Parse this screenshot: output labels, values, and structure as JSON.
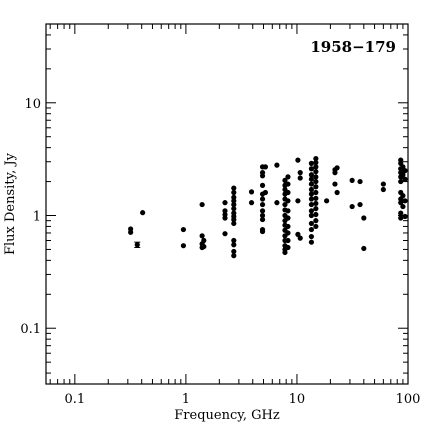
{
  "chart_data": {
    "type": "scatter",
    "title": "1958−179",
    "xlabel": "Frequency, GHz",
    "ylabel": "Flux Density, Jy",
    "xscale": "log",
    "yscale": "log",
    "xlim": [
      0.055,
      100
    ],
    "ylim": [
      0.032,
      50
    ],
    "grid": false,
    "x_tick_labels": [
      {
        "value": 0.1,
        "label": "0.1"
      },
      {
        "value": 1,
        "label": "1"
      },
      {
        "value": 10,
        "label": "10"
      },
      {
        "value": 100,
        "label": "100"
      }
    ],
    "y_tick_labels": [
      {
        "value": 0.1,
        "label": "0.1"
      },
      {
        "value": 1,
        "label": "1"
      },
      {
        "value": 10,
        "label": "10"
      }
    ],
    "points": [
      {
        "x": 0.318,
        "y": 0.76
      },
      {
        "x": 0.318,
        "y": 0.71
      },
      {
        "x": 0.365,
        "y": 0.55,
        "err": 0.03
      },
      {
        "x": 0.408,
        "y": 1.06
      },
      {
        "x": 0.95,
        "y": 0.75
      },
      {
        "x": 0.95,
        "y": 0.54
      },
      {
        "x": 1.4,
        "y": 1.25
      },
      {
        "x": 1.4,
        "y": 0.66
      },
      {
        "x": 1.4,
        "y": 0.56
      },
      {
        "x": 1.4,
        "y": 0.52
      },
      {
        "x": 1.45,
        "y": 0.53
      },
      {
        "x": 1.45,
        "y": 0.6
      },
      {
        "x": 2.25,
        "y": 1.3
      },
      {
        "x": 2.25,
        "y": 1.1
      },
      {
        "x": 2.25,
        "y": 1.02
      },
      {
        "x": 2.25,
        "y": 0.95
      },
      {
        "x": 2.25,
        "y": 0.69
      },
      {
        "x": 2.7,
        "y": 1.75
      },
      {
        "x": 2.7,
        "y": 1.6
      },
      {
        "x": 2.7,
        "y": 1.45
      },
      {
        "x": 2.7,
        "y": 1.35
      },
      {
        "x": 2.7,
        "y": 1.25
      },
      {
        "x": 2.7,
        "y": 1.15
      },
      {
        "x": 2.7,
        "y": 1.05
      },
      {
        "x": 2.7,
        "y": 0.98
      },
      {
        "x": 2.7,
        "y": 0.92
      },
      {
        "x": 2.7,
        "y": 0.85
      },
      {
        "x": 2.7,
        "y": 0.6
      },
      {
        "x": 2.7,
        "y": 0.55
      },
      {
        "x": 2.7,
        "y": 0.48
      },
      {
        "x": 2.7,
        "y": 0.44
      },
      {
        "x": 3.9,
        "y": 1.62
      },
      {
        "x": 3.9,
        "y": 1.3
      },
      {
        "x": 4.9,
        "y": 2.7
      },
      {
        "x": 4.9,
        "y": 2.4
      },
      {
        "x": 4.9,
        "y": 2.25
      },
      {
        "x": 4.9,
        "y": 1.85
      },
      {
        "x": 4.9,
        "y": 1.55
      },
      {
        "x": 4.9,
        "y": 1.4
      },
      {
        "x": 4.9,
        "y": 1.25
      },
      {
        "x": 4.9,
        "y": 1.1
      },
      {
        "x": 4.9,
        "y": 1.0
      },
      {
        "x": 4.9,
        "y": 0.92
      },
      {
        "x": 4.9,
        "y": 0.75
      },
      {
        "x": 4.9,
        "y": 0.72
      },
      {
        "x": 5.2,
        "y": 2.7
      },
      {
        "x": 5.2,
        "y": 1.6
      },
      {
        "x": 6.6,
        "y": 2.8
      },
      {
        "x": 6.6,
        "y": 1.3
      },
      {
        "x": 7.8,
        "y": 2.05
      },
      {
        "x": 7.8,
        "y": 1.85
      },
      {
        "x": 7.8,
        "y": 1.7
      },
      {
        "x": 7.8,
        "y": 1.55
      },
      {
        "x": 7.8,
        "y": 1.4
      },
      {
        "x": 7.8,
        "y": 1.25
      },
      {
        "x": 7.8,
        "y": 1.12
      },
      {
        "x": 7.8,
        "y": 1.0
      },
      {
        "x": 7.8,
        "y": 0.9
      },
      {
        "x": 7.8,
        "y": 0.82
      },
      {
        "x": 7.8,
        "y": 0.74
      },
      {
        "x": 7.8,
        "y": 0.66
      },
      {
        "x": 7.8,
        "y": 0.6
      },
      {
        "x": 7.8,
        "y": 0.54
      },
      {
        "x": 7.8,
        "y": 0.5
      },
      {
        "x": 7.8,
        "y": 0.47
      },
      {
        "x": 8.3,
        "y": 2.2
      },
      {
        "x": 8.3,
        "y": 1.9
      },
      {
        "x": 8.3,
        "y": 1.6
      },
      {
        "x": 8.3,
        "y": 1.35
      },
      {
        "x": 8.3,
        "y": 1.1
      },
      {
        "x": 8.3,
        "y": 0.95
      },
      {
        "x": 8.3,
        "y": 0.8
      },
      {
        "x": 8.3,
        "y": 0.7
      },
      {
        "x": 8.3,
        "y": 0.6
      },
      {
        "x": 8.3,
        "y": 0.52
      },
      {
        "x": 10.2,
        "y": 3.1
      },
      {
        "x": 10.2,
        "y": 1.35
      },
      {
        "x": 10.2,
        "y": 0.68
      },
      {
        "x": 10.7,
        "y": 2.4
      },
      {
        "x": 10.7,
        "y": 2.15
      },
      {
        "x": 10.7,
        "y": 0.63
      },
      {
        "x": 13.5,
        "y": 2.9
      },
      {
        "x": 13.5,
        "y": 2.6
      },
      {
        "x": 13.5,
        "y": 2.3
      },
      {
        "x": 13.5,
        "y": 2.1
      },
      {
        "x": 13.5,
        "y": 1.9
      },
      {
        "x": 13.5,
        "y": 1.7
      },
      {
        "x": 13.5,
        "y": 1.55
      },
      {
        "x": 13.5,
        "y": 1.4
      },
      {
        "x": 13.5,
        "y": 1.25
      },
      {
        "x": 13.5,
        "y": 1.1
      },
      {
        "x": 13.5,
        "y": 1.0
      },
      {
        "x": 13.5,
        "y": 0.85
      },
      {
        "x": 13.5,
        "y": 0.75
      },
      {
        "x": 13.5,
        "y": 0.65
      },
      {
        "x": 13.5,
        "y": 0.58
      },
      {
        "x": 14.8,
        "y": 3.2
      },
      {
        "x": 14.8,
        "y": 2.95
      },
      {
        "x": 14.8,
        "y": 2.7
      },
      {
        "x": 14.8,
        "y": 2.45
      },
      {
        "x": 14.8,
        "y": 2.2
      },
      {
        "x": 14.8,
        "y": 2.0
      },
      {
        "x": 14.8,
        "y": 1.8
      },
      {
        "x": 14.8,
        "y": 1.6
      },
      {
        "x": 14.8,
        "y": 1.42
      },
      {
        "x": 14.8,
        "y": 1.28
      },
      {
        "x": 14.8,
        "y": 1.15
      },
      {
        "x": 14.8,
        "y": 1.02
      },
      {
        "x": 14.8,
        "y": 0.9
      },
      {
        "x": 14.8,
        "y": 0.8
      },
      {
        "x": 18.5,
        "y": 1.35
      },
      {
        "x": 22,
        "y": 2.55
      },
      {
        "x": 22,
        "y": 2.4
      },
      {
        "x": 22,
        "y": 1.9
      },
      {
        "x": 23,
        "y": 2.65
      },
      {
        "x": 23,
        "y": 1.6
      },
      {
        "x": 31.4,
        "y": 2.05
      },
      {
        "x": 31.4,
        "y": 1.2
      },
      {
        "x": 37,
        "y": 2.0
      },
      {
        "x": 37,
        "y": 1.25
      },
      {
        "x": 40,
        "y": 0.95
      },
      {
        "x": 40,
        "y": 0.51
      },
      {
        "x": 60,
        "y": 1.9
      },
      {
        "x": 60,
        "y": 1.7
      },
      {
        "x": 86,
        "y": 3.1
      },
      {
        "x": 86,
        "y": 2.9
      },
      {
        "x": 86,
        "y": 2.6
      },
      {
        "x": 86,
        "y": 2.4
      },
      {
        "x": 86,
        "y": 2.2
      },
      {
        "x": 86,
        "y": 2.0
      },
      {
        "x": 86,
        "y": 1.6
      },
      {
        "x": 86,
        "y": 1.4
      },
      {
        "x": 86,
        "y": 1.3
      },
      {
        "x": 86,
        "y": 1.05
      },
      {
        "x": 86,
        "y": 0.95
      },
      {
        "x": 90,
        "y": 2.7
      },
      {
        "x": 90,
        "y": 2.3
      },
      {
        "x": 90,
        "y": 1.5
      },
      {
        "x": 90,
        "y": 1.2
      },
      {
        "x": 94,
        "y": 2.5
      },
      {
        "x": 94,
        "y": 2.1
      },
      {
        "x": 94,
        "y": 1.35
      },
      {
        "x": 94,
        "y": 0.98
      }
    ]
  }
}
